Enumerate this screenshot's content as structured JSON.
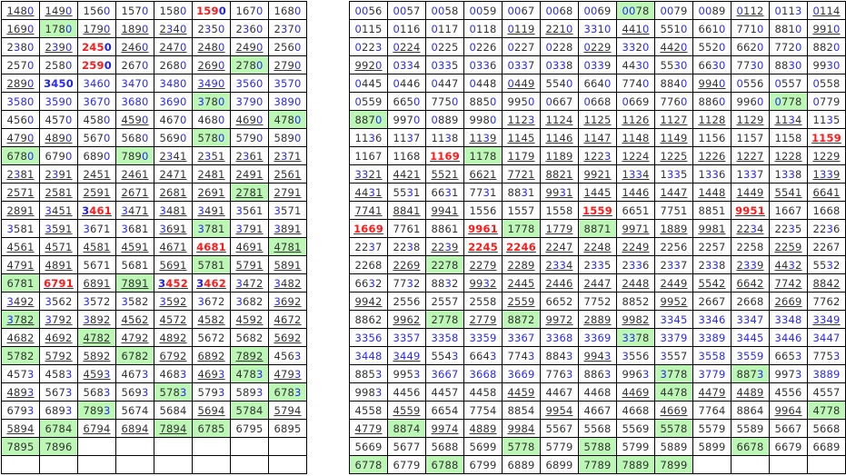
{
  "colors": {
    "highlight_bg": "#bdf7b6",
    "red_text": "#ff1a1a",
    "blue_text": "#2a2aff"
  },
  "left_table": {
    "rows": [
      [
        "1480:u",
        "1490:u",
        "1560",
        "1570",
        "1580",
        "1590:r",
        "1670",
        "1680"
      ],
      [
        "1690:u",
        "1780:g",
        "1790:u",
        "1890:u",
        "2340:u",
        "2350",
        "2360",
        "2370"
      ],
      [
        "2380",
        "2390:u",
        "2450:r",
        "2460:u",
        "2470:u",
        "2480:u",
        "2490:u",
        "2560"
      ],
      [
        "2570",
        "2580",
        "2590:r",
        "2670",
        "2680",
        "2690:u",
        "2780:g",
        "2790:u"
      ],
      [
        "2890:u",
        "3450:rb",
        "3460:b",
        "3470:b",
        "3480:b",
        "3490:bu",
        "3560:b",
        "3570:b"
      ],
      [
        "3580:b",
        "3590:b",
        "3670:b",
        "3680:b",
        "3690:b",
        "3780:g",
        "3790:b",
        "3890:b"
      ],
      [
        "4560",
        "4570",
        "4580",
        "4590:u",
        "4670",
        "4680",
        "4690:u",
        "4780:g"
      ],
      [
        "4790:u",
        "4890:u",
        "5670",
        "5680",
        "5690",
        "5780:g",
        "5790",
        "5890"
      ],
      [
        "6780:g",
        "6790",
        "6890",
        "7890:g",
        "2341:u",
        "2351:u",
        "2361:u",
        "2371:u"
      ],
      [
        "2381:u",
        "2391:u",
        "2451:u",
        "2461:u",
        "2471:u",
        "2481:u",
        "2491:u",
        "2561:u"
      ],
      [
        "2571:u",
        "2581:u",
        "2591:u",
        "2671:u",
        "2681:u",
        "2691:u",
        "2781:gu",
        "2791:u"
      ],
      [
        "2891:u",
        "3451:u",
        "3461:ru",
        "3471:u",
        "3481:u",
        "3491:u",
        "3561",
        "3571"
      ],
      [
        "3581",
        "3591:u",
        "3671",
        "3681",
        "3691:u",
        "3781:g",
        "3791:u",
        "3891:u"
      ],
      [
        "4561:u",
        "4571:u",
        "4581:u",
        "4591:u",
        "4671:u",
        "4681:ru",
        "4691:u",
        "4781:gu"
      ],
      [
        "4791:u",
        "4891:u",
        "5671",
        "5681",
        "5691:u",
        "5781:g",
        "5791:u",
        "5891:u"
      ],
      [
        "6781:g",
        "6791:ru",
        "6891:u",
        "7891:gu",
        "3452:ru",
        "3462:ru",
        "3472:u",
        "3482:u"
      ],
      [
        "3492:u",
        "3562",
        "3572",
        "3582",
        "3592:u",
        "3672",
        "3682",
        "3692:u"
      ],
      [
        "3782:gu",
        "3792:u",
        "3892:u",
        "4562:u",
        "4572:u",
        "4582:u",
        "4592:u",
        "4672:u"
      ],
      [
        "4682:u",
        "4692:u",
        "4782:gu",
        "4792:u",
        "4892:u",
        "5672",
        "5682",
        "5692:u"
      ],
      [
        "5782:g",
        "5792:u",
        "5892:u",
        "6782:g",
        "6792:u",
        "6892:u",
        "7892:gu",
        "4563"
      ],
      [
        "4573",
        "4583",
        "4593:u",
        "4673",
        "4683",
        "4693:u",
        "4783:g",
        "4793:u"
      ],
      [
        "4893:u",
        "5673",
        "5683",
        "5693",
        "5783:g",
        "5793",
        "5893",
        "6783:g"
      ],
      [
        "6793",
        "6893",
        "7893:g",
        "5674",
        "5684",
        "5694:u",
        "5784:g",
        "5794:u"
      ],
      [
        "5894:u",
        "6784:g",
        "6794:u",
        "6894:u",
        "7894:gu",
        "6785:g",
        "6795",
        "6895"
      ],
      [
        "7895:g",
        "7896:g",
        "",
        "",
        "",
        "",
        "",
        ""
      ],
      [
        "",
        "",
        "",
        "",
        "",
        "",
        "",
        ""
      ]
    ]
  },
  "right_table": {
    "rows": [
      [
        "0056",
        "0057",
        "0058",
        "0059",
        "0067",
        "0068",
        "0069",
        "0078:g",
        "0079",
        "0089",
        "0112:u",
        "0113",
        "0114:u"
      ],
      [
        "0115",
        "0116",
        "0117",
        "0118",
        "0119:u",
        "2210:u",
        "3310",
        "4410:u",
        "5510",
        "6610",
        "7710",
        "8810",
        "9910:u"
      ],
      [
        "0223",
        "0224:u",
        "0225",
        "0226",
        "0227",
        "0228",
        "0229:u",
        "3320",
        "4420:u",
        "5520",
        "6620",
        "7720",
        "8820"
      ],
      [
        "9920:u",
        "0334",
        "0335",
        "0336",
        "0337",
        "0338",
        "0339",
        "4430",
        "5530",
        "6630",
        "7730",
        "8830",
        "9930"
      ],
      [
        "0445",
        "0446",
        "0447",
        "0448",
        "0449:u",
        "5540",
        "6640",
        "7740",
        "8840",
        "9940:u",
        "0556",
        "0557",
        "0558"
      ],
      [
        "0559",
        "6650",
        "7750",
        "8850",
        "9950",
        "0667",
        "0668",
        "0669",
        "7760",
        "8860",
        "9960",
        "0778:g",
        "0779"
      ],
      [
        "8870:g",
        "9970",
        "0889",
        "9980",
        "1123:u",
        "1124:u",
        "1125:u",
        "1126:u",
        "1127:u",
        "1128:u",
        "1129:u",
        "1134:u",
        "1135"
      ],
      [
        "1136",
        "1137",
        "1138",
        "1139:u",
        "1145:u",
        "1146:u",
        "1147:u",
        "1148:u",
        "1149:u",
        "1156",
        "1157",
        "1158",
        "1159:ru"
      ],
      [
        "1167",
        "1168",
        "1169:ru",
        "1178:g",
        "1179:u",
        "1189:u",
        "1223:u",
        "1224:u",
        "1225:u",
        "1226:u",
        "1227:u",
        "1228:u",
        "1229:u"
      ],
      [
        "3321:u",
        "4421:u",
        "5521:u",
        "6621:u",
        "7721:u",
        "8821:u",
        "9921:u",
        "1334:u",
        "1335",
        "1336",
        "1337",
        "1338",
        "1339:u"
      ],
      [
        "4431:u",
        "5531",
        "6631",
        "7731",
        "8831",
        "9931:u",
        "1445:u",
        "1446:u",
        "1447:u",
        "1448:u",
        "1449:u",
        "5541:u",
        "6641:u"
      ],
      [
        "7741:u",
        "8841:u",
        "9941:u",
        "1556",
        "1557",
        "1558",
        "1559:ru",
        "6651",
        "7751",
        "8851",
        "9951:ru",
        "1667",
        "1668"
      ],
      [
        "1669:ru",
        "7761",
        "8861",
        "9961:ru",
        "1778:g",
        "1779:u",
        "8871:g",
        "9971:u",
        "1889:u",
        "9981:u",
        "2234:u",
        "2235",
        "2236"
      ],
      [
        "2237",
        "2238",
        "2239:u",
        "2245:ru",
        "2246:ru",
        "2247:u",
        "2248:u",
        "2249:u",
        "2256",
        "2257",
        "2258",
        "2259:u",
        "2267"
      ],
      [
        "2268",
        "2269:u",
        "2278:g",
        "2279:u",
        "2289:u",
        "2334:u",
        "2335",
        "2336",
        "2337",
        "2338",
        "2339:u",
        "4432:u",
        "5532"
      ],
      [
        "6632",
        "7732",
        "8832",
        "9932:u",
        "2445:u",
        "2446:u",
        "2447:u",
        "2448:u",
        "2449:u",
        "5542:u",
        "6642:u",
        "7742:u",
        "8842:u"
      ],
      [
        "9942:u",
        "2556",
        "2557",
        "2558",
        "2559:u",
        "6652",
        "7752",
        "8852",
        "9952:u",
        "2667",
        "2668",
        "2669:u",
        "7762"
      ],
      [
        "8862",
        "9962:u",
        "2778:g",
        "2779:u",
        "8872:g",
        "9972:u",
        "2889:u",
        "9982:u",
        "3345:b",
        "3346:b",
        "3347:b",
        "3348:b",
        "3349:bu"
      ],
      [
        "3356:b",
        "3357:b",
        "3358:b",
        "3359:b",
        "3367:b",
        "3368:b",
        "3369:b",
        "3378:g",
        "3379:b",
        "3389:b",
        "3445:b",
        "3446:b",
        "3447:b"
      ],
      [
        "3448:b",
        "3449:bu",
        "5543",
        "6643",
        "7743",
        "8843",
        "9943:u",
        "3556",
        "3557",
        "3558:b",
        "3559:b",
        "6653",
        "7753"
      ],
      [
        "8853",
        "9953",
        "3667:b",
        "3668:b",
        "3669:b",
        "7763",
        "8863",
        "9963",
        "3778:g",
        "3779:b",
        "8873:g",
        "9973",
        "3889:b"
      ],
      [
        "9983",
        "4456",
        "4457",
        "4458",
        "4459:u",
        "4467",
        "4468",
        "4469:u",
        "4478:g",
        "4479:u",
        "4489:u",
        "4556",
        "4557"
      ],
      [
        "4558",
        "4559:u",
        "6654",
        "7754",
        "8854",
        "9954:u",
        "4667",
        "4668",
        "4669:u",
        "7764",
        "8864",
        "9964:u",
        "4778:g"
      ],
      [
        "4779:u",
        "8874:g",
        "9974:u",
        "4889:u",
        "9984:u",
        "5567",
        "5568",
        "5569",
        "5578:g",
        "5579",
        "5589",
        "5667",
        "5668"
      ],
      [
        "5669",
        "5677",
        "5688",
        "5699",
        "5778:g",
        "5779",
        "5788:g",
        "5799",
        "5889",
        "5899",
        "6678:g",
        "6679",
        "6689"
      ],
      [
        "6778:g",
        "6779",
        "6788:g",
        "6799",
        "6889",
        "6899",
        "7789:g",
        "7889:g",
        "7899:g",
        "",
        "",
        "",
        ""
      ]
    ]
  }
}
